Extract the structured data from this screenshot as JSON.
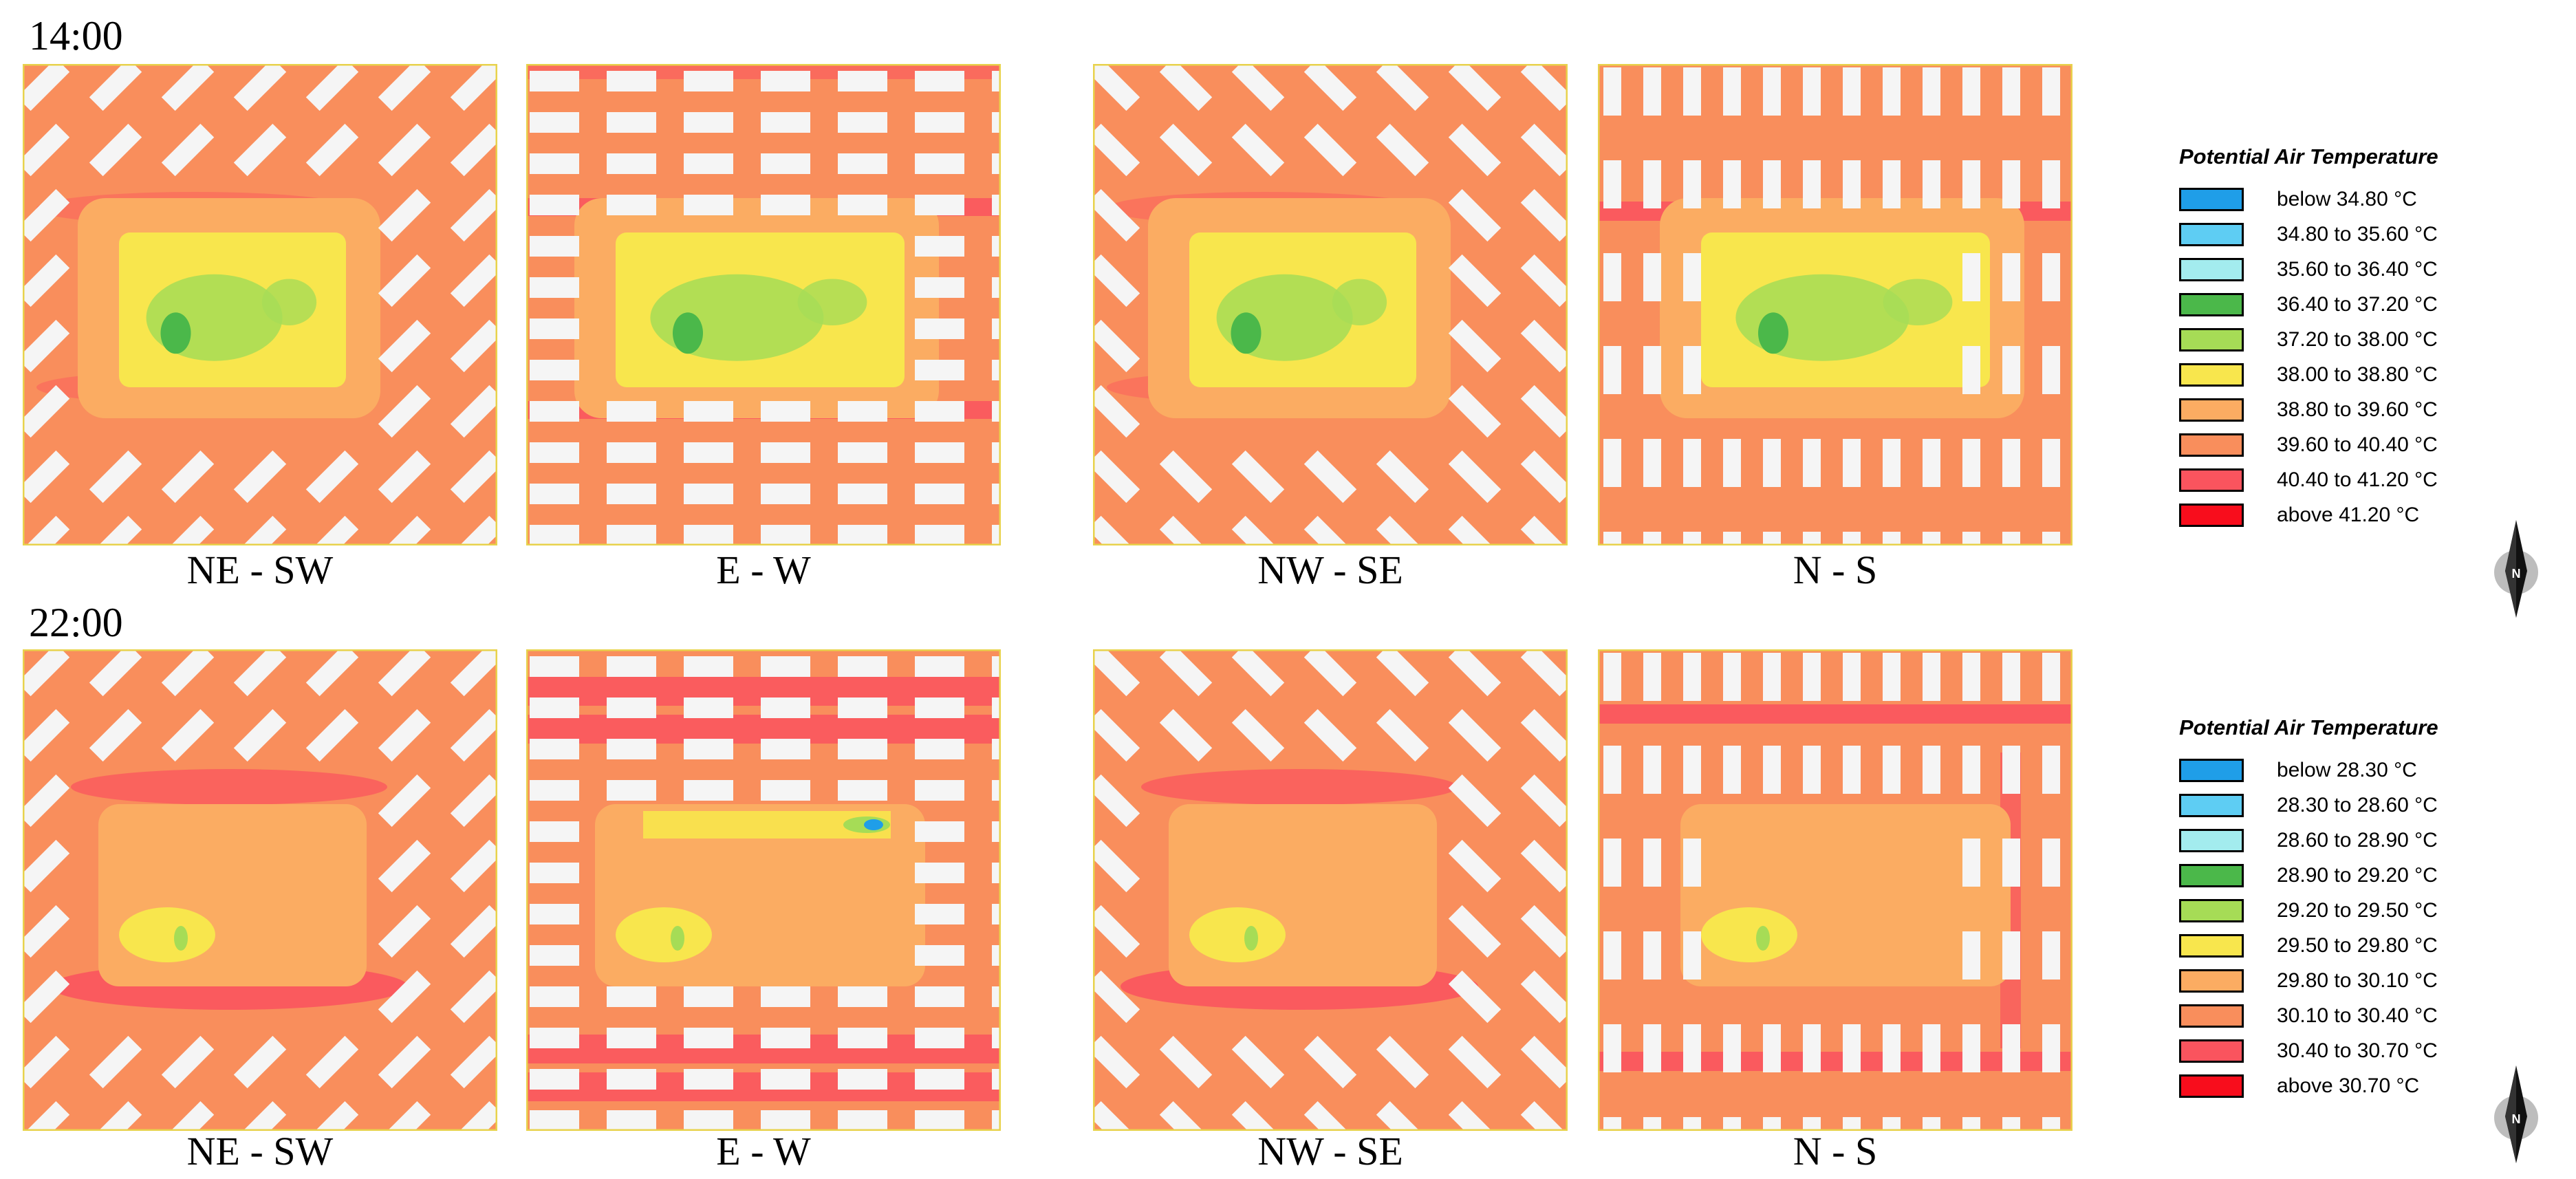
{
  "colors": {
    "base": "#f98e5c",
    "warm": "#fbac62",
    "hot": "#fa545e",
    "hottest": "#f0323d",
    "yellow": "#f8e64d",
    "lightgreen": "#a6dc56",
    "green": "#4bb84a",
    "blue": "#1f9ee8",
    "building": "#f5f5f5",
    "edge": "#e8d24c"
  },
  "rows": [
    {
      "time": "14:00",
      "panels": [
        {
          "label": "NE - SW",
          "orientation": "diagonal-ne",
          "phase": "day"
        },
        {
          "label": "E - W",
          "orientation": "horizontal",
          "phase": "day"
        },
        {
          "label": "NW - SE",
          "orientation": "diagonal-nw",
          "phase": "day"
        },
        {
          "label": "N - S",
          "orientation": "vertical",
          "phase": "day"
        }
      ],
      "legend": {
        "title": "Potential Air Temperature",
        "items": [
          {
            "label": "below 34.80 °C",
            "color": "#1f9ee8"
          },
          {
            "label": "34.80 to 35.60 °C",
            "color": "#5ecdf3"
          },
          {
            "label": "35.60 to 36.40 °C",
            "color": "#a3ecee"
          },
          {
            "label": "36.40 to 37.20 °C",
            "color": "#4bb84a"
          },
          {
            "label": "37.20 to 38.00 °C",
            "color": "#a6dc56"
          },
          {
            "label": "38.00 to 38.80 °C",
            "color": "#f8e64d"
          },
          {
            "label": "38.80 to 39.60 °C",
            "color": "#fbac62"
          },
          {
            "label": "39.60 to 40.40 °C",
            "color": "#f98e5c"
          },
          {
            "label": "40.40 to 41.20 °C",
            "color": "#fa545e"
          },
          {
            "label": "above 41.20 °C",
            "color": "#f80d1c"
          }
        ]
      }
    },
    {
      "time": "22:00",
      "panels": [
        {
          "label": "NE - SW",
          "orientation": "diagonal-ne",
          "phase": "night"
        },
        {
          "label": "E - W",
          "orientation": "horizontal",
          "phase": "night"
        },
        {
          "label": "NW - SE",
          "orientation": "diagonal-nw",
          "phase": "night"
        },
        {
          "label": "N - S",
          "orientation": "vertical",
          "phase": "night"
        }
      ],
      "legend": {
        "title": "Potential Air Temperature",
        "items": [
          {
            "label": "below 28.30 °C",
            "color": "#1f9ee8"
          },
          {
            "label": "28.30 to 28.60 °C",
            "color": "#5ecdf3"
          },
          {
            "label": "28.60 to 28.90 °C",
            "color": "#a3ecee"
          },
          {
            "label": "28.90 to 29.20 °C",
            "color": "#4bb84a"
          },
          {
            "label": "29.20 to 29.50 °C",
            "color": "#a6dc56"
          },
          {
            "label": "29.50 to 29.80 °C",
            "color": "#f8e64d"
          },
          {
            "label": "29.80 to 30.10 °C",
            "color": "#fbac62"
          },
          {
            "label": "30.10 to 30.40 °C",
            "color": "#f98e5c"
          },
          {
            "label": "30.40 to 30.70 °C",
            "color": "#fa545e"
          },
          {
            "label": "above 30.70 °C",
            "color": "#f80d1c"
          }
        ]
      }
    }
  ],
  "north_arrow": {
    "icon": "north-arrow-icon",
    "letter": "N"
  }
}
